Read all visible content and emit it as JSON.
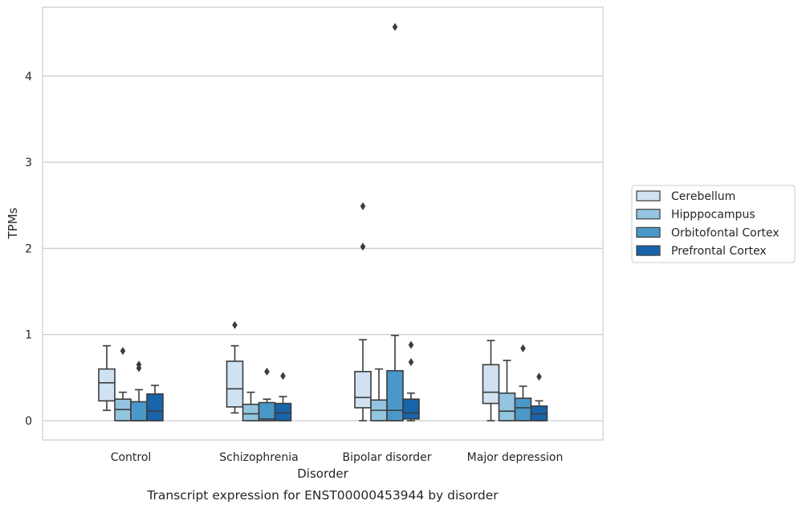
{
  "caption": "Transcript expression for ENST00000453944 by disorder",
  "chart_data": {
    "type": "box",
    "xlabel": "Disorder",
    "ylabel": "TPMs",
    "ylim": [
      -0.22,
      4.8
    ],
    "yticks": [
      0,
      1,
      2,
      3,
      4
    ],
    "grid": "horizontal",
    "legend_position": "right",
    "categories": [
      "Control",
      "Schizophrenia",
      "Bipolar disorder",
      "Major depression"
    ],
    "series": [
      {
        "name": "Cerebellum",
        "color": "#d0e1f2",
        "boxes": [
          {
            "whislo": 0.12,
            "q1": 0.23,
            "med": 0.44,
            "q3": 0.6,
            "whishi": 0.87,
            "fliers": []
          },
          {
            "whislo": 0.09,
            "q1": 0.16,
            "med": 0.37,
            "q3": 0.69,
            "whishi": 0.87,
            "fliers": [
              1.11
            ]
          },
          {
            "whislo": 0.0,
            "q1": 0.15,
            "med": 0.27,
            "q3": 0.57,
            "whishi": 0.94,
            "fliers": [
              2.49,
              2.02
            ]
          },
          {
            "whislo": 0.0,
            "q1": 0.2,
            "med": 0.33,
            "q3": 0.65,
            "whishi": 0.93,
            "fliers": []
          }
        ]
      },
      {
        "name": "Hipppocampus",
        "color": "#94c4df",
        "boxes": [
          {
            "whislo": 0.0,
            "q1": 0.0,
            "med": 0.13,
            "q3": 0.25,
            "whishi": 0.33,
            "fliers": [
              0.81
            ]
          },
          {
            "whislo": 0.0,
            "q1": 0.0,
            "med": 0.08,
            "q3": 0.19,
            "whishi": 0.33,
            "fliers": []
          },
          {
            "whislo": 0.0,
            "q1": 0.0,
            "med": 0.12,
            "q3": 0.24,
            "whishi": 0.6,
            "fliers": []
          },
          {
            "whislo": 0.0,
            "q1": 0.0,
            "med": 0.11,
            "q3": 0.32,
            "whishi": 0.7,
            "fliers": []
          }
        ]
      },
      {
        "name": "Orbitofontal Cortex",
        "color": "#4a98c9",
        "boxes": [
          {
            "whislo": 0.0,
            "q1": 0.0,
            "med": 0.0,
            "q3": 0.22,
            "whishi": 0.36,
            "fliers": [
              0.65,
              0.61
            ]
          },
          {
            "whislo": 0.0,
            "q1": 0.0,
            "med": 0.02,
            "q3": 0.21,
            "whishi": 0.25,
            "fliers": [
              0.57
            ]
          },
          {
            "whislo": 0.0,
            "q1": 0.0,
            "med": 0.12,
            "q3": 0.58,
            "whishi": 0.99,
            "fliers": [
              4.57
            ]
          },
          {
            "whislo": 0.0,
            "q1": 0.0,
            "med": 0.15,
            "q3": 0.26,
            "whishi": 0.4,
            "fliers": [
              0.84
            ]
          }
        ]
      },
      {
        "name": "Prefrontal Cortex",
        "color": "#1764ab",
        "boxes": [
          {
            "whislo": 0.0,
            "q1": 0.0,
            "med": 0.11,
            "q3": 0.31,
            "whishi": 0.41,
            "fliers": []
          },
          {
            "whislo": 0.0,
            "q1": 0.0,
            "med": 0.09,
            "q3": 0.2,
            "whishi": 0.28,
            "fliers": [
              0.52
            ]
          },
          {
            "whislo": 0.0,
            "q1": 0.02,
            "med": 0.09,
            "q3": 0.25,
            "whishi": 0.32,
            "fliers": [
              0.88,
              0.68
            ]
          },
          {
            "whislo": 0.0,
            "q1": 0.0,
            "med": 0.08,
            "q3": 0.17,
            "whishi": 0.23,
            "fliers": [
              0.51
            ]
          }
        ]
      }
    ]
  }
}
